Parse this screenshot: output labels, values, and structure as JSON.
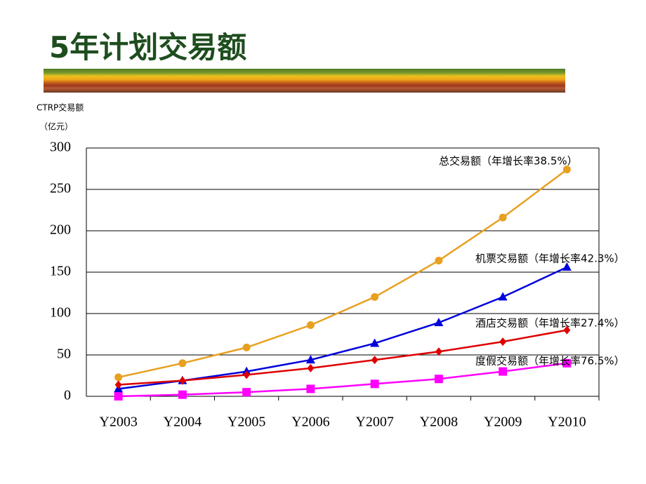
{
  "chart_data": {
    "type": "line",
    "title": "5年计划交易额",
    "y_label": "CTRP交易额",
    "y_unit": "（亿元）",
    "categories": [
      "Y2003",
      "Y2004",
      "Y2005",
      "Y2006",
      "Y2007",
      "Y2008",
      "Y2009",
      "Y2010"
    ],
    "ylim": [
      0,
      300
    ],
    "yticks": [
      0,
      50,
      100,
      150,
      200,
      250,
      300
    ],
    "grid": true,
    "series": [
      {
        "name": "总交易额（年增长率38.5%）",
        "color": "#e8a020",
        "marker": "circle",
        "values": [
          23,
          40,
          59,
          86,
          120,
          164,
          216,
          274
        ]
      },
      {
        "name": "机票交易额（年增长率42.3%）",
        "color": "#0000dd",
        "marker": "triangle",
        "values": [
          9,
          19,
          30,
          44,
          64,
          89,
          120,
          156
        ]
      },
      {
        "name": "酒店交易额（年增长率27.4%）",
        "color": "#dd0000",
        "marker": "diamond",
        "values": [
          14,
          19,
          26,
          34,
          44,
          54,
          66,
          80
        ]
      },
      {
        "name": "度假交易额（年增长率76.5%）",
        "color": "#ff00ff",
        "marker": "square",
        "values": [
          0,
          2,
          5,
          9,
          15,
          21,
          30,
          40
        ]
      }
    ]
  }
}
